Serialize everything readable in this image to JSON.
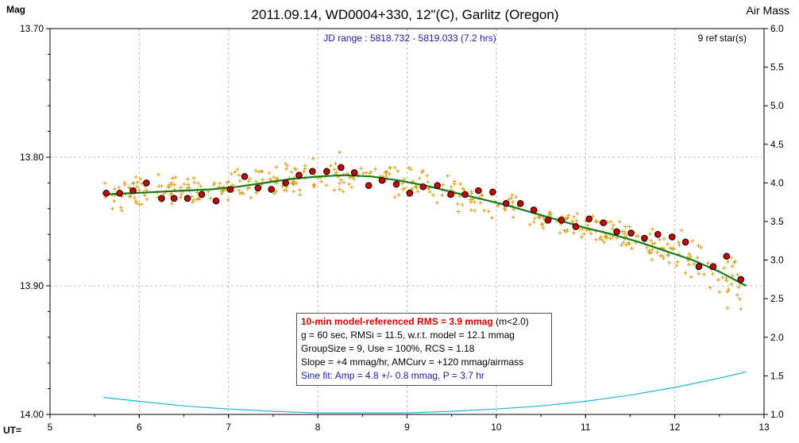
{
  "chart_data": {
    "type": "scatter",
    "title": "2011.09.14, WD0004+330, 12\"(C), Garlitz (Oregon)",
    "subtitle": "JD range : 5818.732 - 5819.033 (7.2 hrs)",
    "ref_stars": "9 ref star(s)",
    "ylabel": "Mag",
    "y2label": "Air Mass",
    "xlabel": "UT=",
    "xlim": [
      5,
      13
    ],
    "ylim": [
      14.0,
      13.7
    ],
    "y2lim": [
      1.0,
      6.0
    ],
    "x_ticks": [
      "5",
      "6",
      "7",
      "8",
      "9",
      "10",
      "11",
      "12",
      "13"
    ],
    "y_ticks": [
      "13.70",
      "13.80",
      "13.90",
      "14.00"
    ],
    "y2_ticks": [
      "6.0",
      "5.5",
      "5.0",
      "4.5",
      "4.0",
      "3.5",
      "3.0",
      "2.5",
      "2.0",
      "1.5",
      "1.0"
    ],
    "grid": true,
    "colors": {
      "raw": "#d4a017",
      "binned": "#cc0000",
      "model": "#1a7a1a",
      "airmass": "#1bb5d6",
      "subtitle": "#1a1a9c"
    },
    "binned_x": [
      5.63,
      5.78,
      5.93,
      6.08,
      6.25,
      6.39,
      6.54,
      6.7,
      6.86,
      7.02,
      7.18,
      7.33,
      7.48,
      7.64,
      7.79,
      7.94,
      8.1,
      8.26,
      8.41,
      8.57,
      8.72,
      8.88,
      9.03,
      9.18,
      9.34,
      9.49,
      9.65,
      9.8,
      9.96,
      10.11,
      10.27,
      10.42,
      10.58,
      10.73,
      10.89,
      11.04,
      11.2,
      11.35,
      11.51,
      11.66,
      11.81,
      11.97,
      12.12,
      12.27,
      12.43,
      12.58,
      12.74
    ],
    "binned_y": [
      13.828,
      13.828,
      13.826,
      13.82,
      13.832,
      13.832,
      13.832,
      13.829,
      13.834,
      13.825,
      13.815,
      13.824,
      13.825,
      13.82,
      13.814,
      13.811,
      13.811,
      13.808,
      13.812,
      13.822,
      13.818,
      13.821,
      13.828,
      13.823,
      13.822,
      13.829,
      13.829,
      13.826,
      13.827,
      13.836,
      13.836,
      13.841,
      13.849,
      13.849,
      13.854,
      13.848,
      13.851,
      13.858,
      13.859,
      13.863,
      13.86,
      13.862,
      13.866,
      13.885,
      13.885,
      13.877,
      13.895
    ],
    "model_x": [
      5.6,
      5.9,
      6.2,
      6.5,
      6.8,
      7.1,
      7.4,
      7.7,
      8.0,
      8.3,
      8.6,
      8.9,
      9.2,
      9.5,
      9.8,
      10.1,
      10.4,
      10.7,
      11.0,
      11.3,
      11.6,
      11.9,
      12.2,
      12.5,
      12.8
    ],
    "model_y": [
      13.829,
      13.828,
      13.827,
      13.826,
      13.825,
      13.823,
      13.82,
      13.817,
      13.815,
      13.814,
      13.815,
      13.818,
      13.822,
      13.827,
      13.832,
      13.837,
      13.843,
      13.849,
      13.855,
      13.86,
      13.866,
      13.873,
      13.88,
      13.889,
      13.9
    ],
    "airmass_x": [
      5.6,
      6.0,
      6.5,
      7.0,
      7.5,
      8.0,
      8.5,
      9.0,
      9.5,
      10.0,
      10.5,
      11.0,
      11.5,
      12.0,
      12.5,
      12.8
    ],
    "airmass_y": [
      1.22,
      1.17,
      1.11,
      1.07,
      1.04,
      1.02,
      1.02,
      1.02,
      1.04,
      1.07,
      1.11,
      1.17,
      1.25,
      1.35,
      1.47,
      1.55
    ],
    "raw_seed": 20110914,
    "raw_count": 480,
    "raw_scatter_mag": 0.011
  },
  "legend": {
    "line1_main": "10-min model-referenced RMS = 3.9 mmag",
    "line1_note": " (m<2.0)",
    "line2": "g = 60 sec, RMSi = 11.5, w.r.t. model = 12.1 mmag",
    "line3": "GroupSize = 9, Use = 100%, RCS = 1.18",
    "line4": "Slope = +4 mmag/hr, AMCurv = +120 mmag/airmass",
    "line5": "Sine fit: Amp = 4.8 +/- 0.8 mmag, P = 3.7 hr"
  }
}
